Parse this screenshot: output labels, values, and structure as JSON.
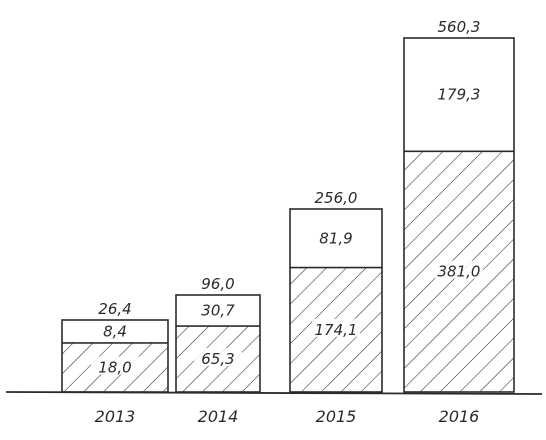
{
  "chart_data": {
    "type": "bar",
    "stacked": true,
    "categories": [
      "2013",
      "2014",
      "2015",
      "2016"
    ],
    "series": [
      {
        "key": "lower",
        "values": [
          18.0,
          65.3,
          174.1,
          381.0
        ],
        "labels": [
          "18,0",
          "65,3",
          "174,1",
          "381,0"
        ],
        "fill": "hatched"
      },
      {
        "key": "upper",
        "values": [
          8.4,
          30.7,
          81.9,
          179.3
        ],
        "labels": [
          "8,4",
          "30,7",
          "81,9",
          "179,3"
        ],
        "fill": "none"
      }
    ],
    "totals": [
      26.4,
      96.0,
      256.0,
      560.3
    ],
    "total_labels": [
      "26,4",
      "96,0",
      "256,0",
      "560,3"
    ],
    "title": "",
    "xlabel": "",
    "ylabel": "",
    "y_axis_visible": false,
    "grid": false,
    "legend": "none",
    "colors": {
      "ink": "#2b2b2b",
      "background": "#ffffff"
    }
  }
}
